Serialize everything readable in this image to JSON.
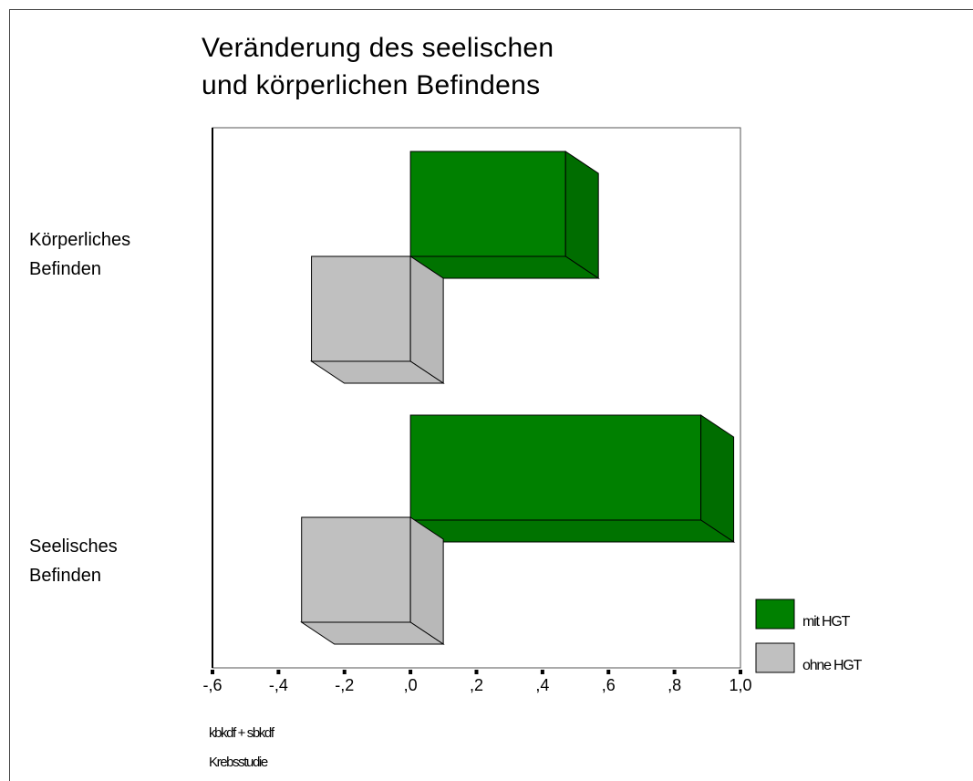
{
  "chart_data": {
    "type": "bar",
    "orientation": "horizontal",
    "style": "3d",
    "title_lines": [
      "Veränderung des seelischen",
      "und körperlichen Befindens"
    ],
    "categories": [
      [
        "Körperliches",
        "Befinden"
      ],
      [
        "Seelisches",
        "Befinden"
      ]
    ],
    "series": [
      {
        "name": "mit HGT",
        "color": "#008000",
        "values": [
          0.47,
          0.88
        ]
      },
      {
        "name": "ohne HGT",
        "color": "#c0c0c0",
        "values": [
          -0.3,
          -0.33
        ]
      }
    ],
    "x_ticks": [
      -0.6,
      -0.4,
      -0.2,
      0.0,
      0.2,
      0.4,
      0.6,
      0.8,
      1.0
    ],
    "x_tick_labels": [
      "-,6",
      "-,4",
      "-,2",
      ",0",
      ",2",
      ",4",
      ",6",
      ",8",
      "1,0"
    ],
    "xlim": [
      -0.6,
      1.0
    ],
    "grid": false,
    "legend_position": "bottom-right",
    "footnotes": [
      "kbkdf + sbkdf",
      "Krebsstudie"
    ]
  }
}
